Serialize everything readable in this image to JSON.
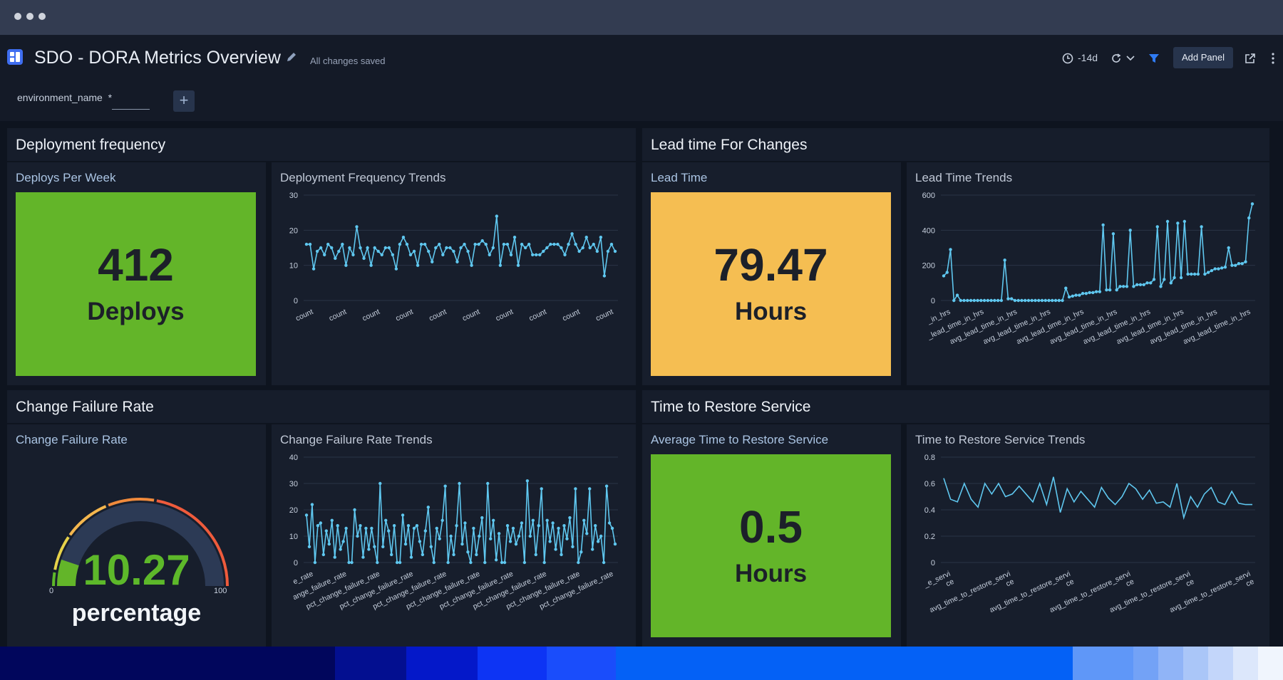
{
  "window": {
    "title": "SDO - DORA Metrics Overview",
    "status": "All changes saved"
  },
  "toolbar": {
    "time_range": "-14d",
    "add_panel_label": "Add Panel"
  },
  "filters": {
    "label": "environment_name",
    "value": "*",
    "add_label": "+"
  },
  "colors": {
    "green": "#63b529",
    "amber": "#f5be52",
    "line": "#5fc7ef",
    "page_bg": "#0e141f",
    "panel_bg": "#171e2c"
  },
  "sections": [
    {
      "title": "Deployment frequency"
    },
    {
      "title": "Lead time For Changes"
    },
    {
      "title": "Change Failure Rate"
    },
    {
      "title": "Time to Restore Service"
    }
  ],
  "panels": {
    "deploys_per_week": {
      "title": "Deploys Per Week",
      "value": "412",
      "unit": "Deploys"
    },
    "lead_time": {
      "title": "Lead Time",
      "value": "79.47",
      "unit": "Hours"
    },
    "change_failure_rate": {
      "title": "Change Failure Rate",
      "value": "10.27",
      "unit": "percentage",
      "min_label": "0",
      "max_label": "100",
      "gauge_min": 0,
      "gauge_max": 100,
      "gauge_value": 10.27
    },
    "avg_restore": {
      "title": "Average Time to Restore Service",
      "value": "0.5",
      "unit": "Hours"
    }
  },
  "chart_data": [
    {
      "type": "line",
      "title": "Deployment Frequency Trends",
      "ylim": [
        0,
        30
      ],
      "yticks": [
        0,
        10,
        20,
        30
      ],
      "xtick_labels": [
        "count",
        "count",
        "count",
        "count",
        "count",
        "count",
        "count",
        "count",
        "count",
        "count"
      ],
      "series": [
        {
          "values": [
            16,
            16,
            9,
            14,
            15,
            13,
            16,
            15,
            12,
            14,
            16,
            10,
            15,
            13,
            21,
            15,
            12,
            15,
            10,
            15,
            14,
            13,
            15,
            15,
            13,
            9,
            16,
            18,
            16,
            13,
            14,
            10,
            16,
            16,
            14,
            11,
            15,
            16,
            13,
            15,
            15,
            14,
            11,
            15,
            16,
            14,
            10,
            16,
            16,
            17,
            16,
            13,
            15,
            24,
            10,
            16,
            16,
            13,
            18,
            10,
            16,
            15,
            16,
            13,
            13,
            13,
            14,
            15,
            16,
            16,
            16,
            15,
            13,
            16,
            19,
            16,
            14,
            15,
            18,
            15,
            16,
            14,
            18,
            7,
            14,
            16,
            14
          ]
        }
      ]
    },
    {
      "type": "line",
      "title": "Lead Time Trends",
      "ylim": [
        0,
        600
      ],
      "yticks": [
        0,
        200,
        400,
        600
      ],
      "xtick_labels": [
        "_in_hrs",
        "_lead_time_in_hrs",
        "avg_lead_time_in_hrs",
        "avg_lead_time_in_hrs",
        "avg_lead_time_in_hrs",
        "avg_lead_time_in_hrs",
        "avg_lead_time_in_hrs",
        "avg_lead_time_in_hrs",
        "avg_lead_time_in_hrs",
        "avg_lead_time_in_hrs"
      ],
      "series": [
        {
          "values": [
            140,
            160,
            290,
            0,
            30,
            0,
            0,
            0,
            0,
            0,
            0,
            0,
            0,
            0,
            0,
            0,
            0,
            0,
            230,
            10,
            10,
            0,
            0,
            0,
            0,
            0,
            0,
            0,
            0,
            0,
            0,
            0,
            0,
            0,
            0,
            0,
            70,
            20,
            25,
            30,
            30,
            40,
            40,
            45,
            45,
            50,
            50,
            430,
            60,
            60,
            380,
            60,
            80,
            80,
            80,
            400,
            80,
            90,
            90,
            90,
            100,
            100,
            120,
            420,
            80,
            120,
            450,
            100,
            130,
            440,
            130,
            450,
            150,
            150,
            150,
            150,
            420,
            150,
            160,
            170,
            180,
            180,
            185,
            190,
            300,
            200,
            200,
            210,
            210,
            220,
            470,
            550
          ]
        }
      ]
    },
    {
      "type": "line",
      "title": "Change Failure Rate Trends",
      "ylim": [
        0,
        40
      ],
      "yticks": [
        0,
        10,
        20,
        30,
        40
      ],
      "xtick_labels": [
        "e_rate",
        "ange_failure_rate",
        "pct_change_failure_rate",
        "pct_change_failure_rate",
        "pct_change_failure_rate",
        "pct_change_failure_rate",
        "pct_change_failure_rate",
        "pct_change_failure_rate",
        "pct_change_failure_rate",
        "pct_change_failure_rate"
      ],
      "series": [
        {
          "values": [
            18,
            6,
            22,
            0,
            14,
            15,
            3,
            12,
            7,
            16,
            2,
            14,
            5,
            8,
            13,
            0,
            0,
            20,
            10,
            14,
            2,
            13,
            5,
            13,
            6,
            0,
            30,
            6,
            16,
            12,
            3,
            14,
            0,
            0,
            18,
            7,
            14,
            2,
            13,
            14,
            8,
            3,
            12,
            21,
            6,
            0,
            13,
            9,
            16,
            29,
            0,
            10,
            3,
            14,
            30,
            7,
            15,
            4,
            0,
            13,
            3,
            10,
            17,
            0,
            30,
            9,
            16,
            1,
            11,
            0,
            0,
            14,
            8,
            13,
            7,
            10,
            15,
            0,
            31,
            10,
            16,
            3,
            14,
            28,
            0,
            16,
            8,
            15,
            5,
            13,
            3,
            14,
            9,
            17,
            6,
            28,
            0,
            4,
            16,
            11,
            28,
            5,
            14,
            8,
            10,
            0,
            29,
            15,
            13,
            7
          ]
        }
      ]
    },
    {
      "type": "line",
      "title": "Time to Restore Service Trends",
      "ylim": [
        0,
        0.8
      ],
      "yticks": [
        0,
        0.2,
        0.4,
        0.6,
        0.8
      ],
      "xtick_labels": [
        "_e_servi ce",
        "avg_time_to_restore_servi ce",
        "avg_time_to_restore_servi ce",
        "avg_time_to_restore_servi ce",
        "avg_time_to_restore_servi ce",
        "avg_time_to_restore_servi ce"
      ],
      "series": [
        {
          "values": [
            0.64,
            0.48,
            0.46,
            0.6,
            0.48,
            0.42,
            0.6,
            0.52,
            0.6,
            0.5,
            0.52,
            0.58,
            0.52,
            0.46,
            0.6,
            0.44,
            0.65,
            0.38,
            0.56,
            0.46,
            0.54,
            0.48,
            0.42,
            0.57,
            0.49,
            0.44,
            0.5,
            0.6,
            0.56,
            0.48,
            0.55,
            0.45,
            0.46,
            0.42,
            0.6,
            0.34,
            0.5,
            0.42,
            0.52,
            0.57,
            0.46,
            0.44,
            0.54,
            0.45,
            0.44,
            0.44
          ]
        }
      ]
    }
  ]
}
